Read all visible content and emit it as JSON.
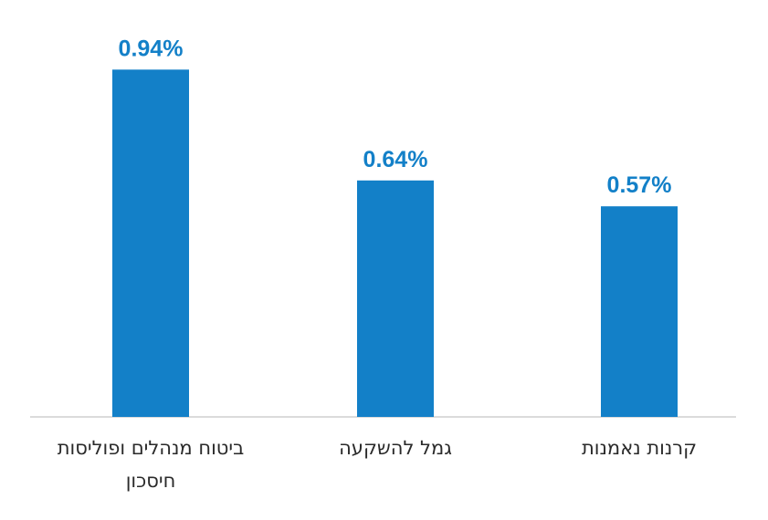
{
  "chart_data": {
    "type": "bar",
    "categories": [
      [
        "ביטוח מנהלים ופוליסות",
        "חיסכון"
      ],
      [
        "גמל להשקעה"
      ],
      [
        "קרנות נאמנות"
      ]
    ],
    "values": [
      0.94,
      0.64,
      0.57
    ],
    "value_labels": [
      "0.94%",
      "0.64%",
      "0.57%"
    ],
    "ylim": [
      0,
      1.0
    ],
    "grid": false,
    "legend": "none",
    "bar_color": "#1380c8",
    "label_color": "#1380c8",
    "axis_color": "#cfcfcf"
  }
}
